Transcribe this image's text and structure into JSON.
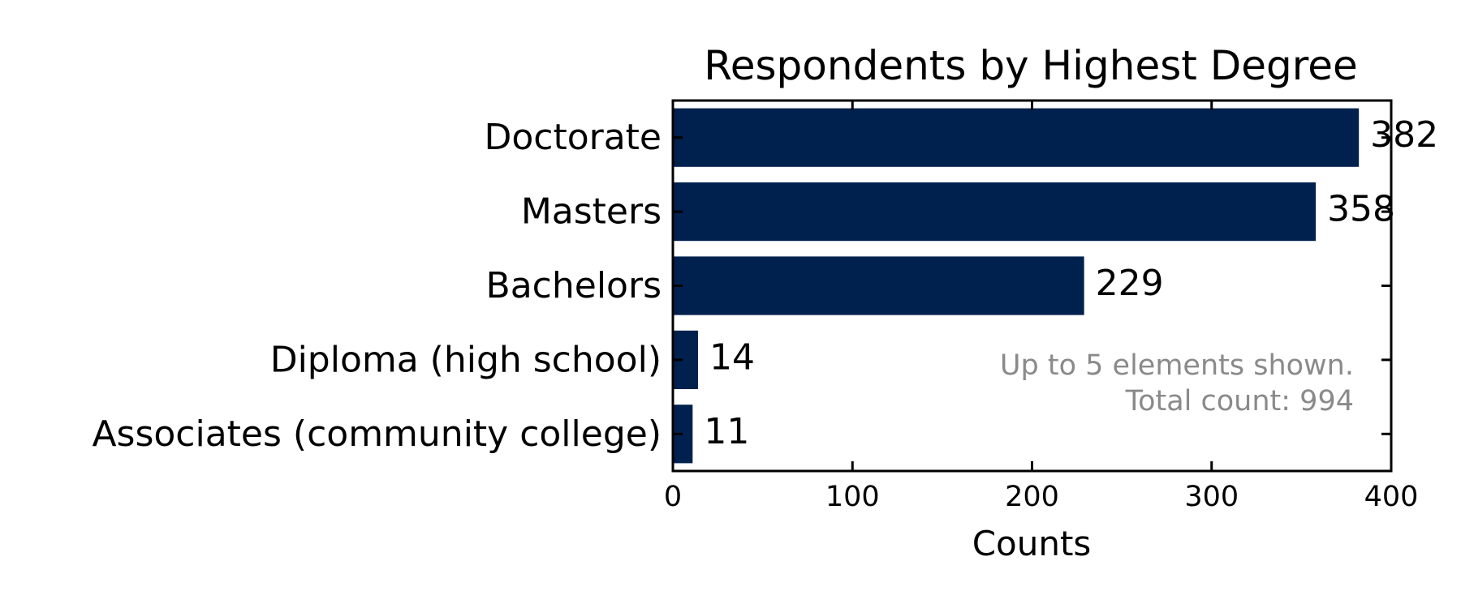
{
  "chart_data": {
    "type": "bar",
    "orientation": "horizontal",
    "title": "Respondents by Highest Degree",
    "categories": [
      "Doctorate",
      "Masters",
      "Bachelors",
      "Diploma (high school)",
      "Associates (community college)"
    ],
    "values": [
      382,
      358,
      229,
      14,
      11
    ],
    "xlabel": "Counts",
    "ylabel": "",
    "xlim": [
      0,
      400
    ],
    "xticks": [
      "0",
      "100",
      "200",
      "300",
      "400"
    ],
    "grid": false,
    "bar_color": "#00214e",
    "note": {
      "line1": "Up to 5 elements shown.",
      "line2": "Total count: 994"
    }
  }
}
